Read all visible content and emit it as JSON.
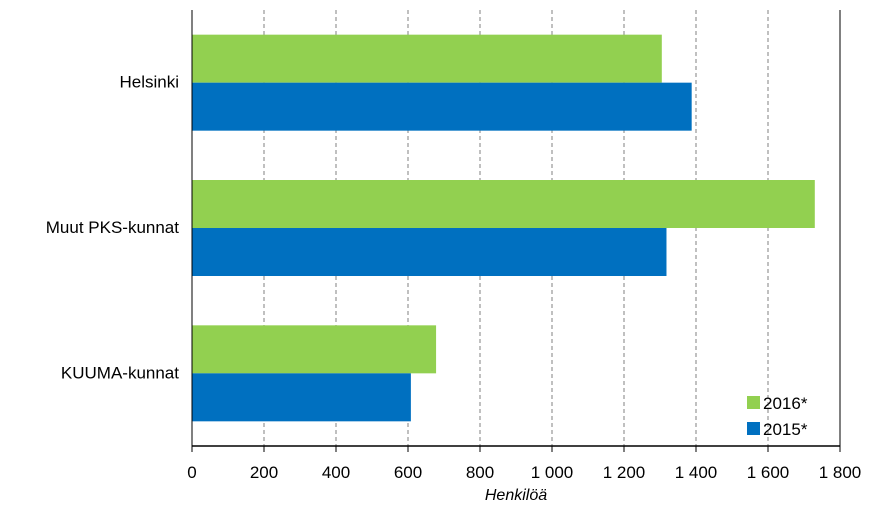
{
  "chart_data": {
    "type": "bar",
    "orientation": "horizontal",
    "categories": [
      "Helsinki",
      "Muut PKS-kunnat",
      "KUUMA-kunnat"
    ],
    "series": [
      {
        "name": "2016*",
        "values": [
          1305,
          1730,
          678
        ],
        "color": "#92D050"
      },
      {
        "name": "2015*",
        "values": [
          1388,
          1318,
          608
        ],
        "color": "#0070C0"
      }
    ],
    "xlabel": "Henkilöä",
    "xlim": [
      0,
      1800
    ],
    "xticks": [
      0,
      200,
      400,
      600,
      800,
      1000,
      1200,
      1400,
      1600,
      1800
    ],
    "xtick_labels": [
      "0",
      "200",
      "400",
      "600",
      "800",
      "1 000",
      "1 200",
      "1 400",
      "1 600",
      "1 800"
    ],
    "grid": "vertical dashed",
    "legend_position": "bottom-right"
  }
}
